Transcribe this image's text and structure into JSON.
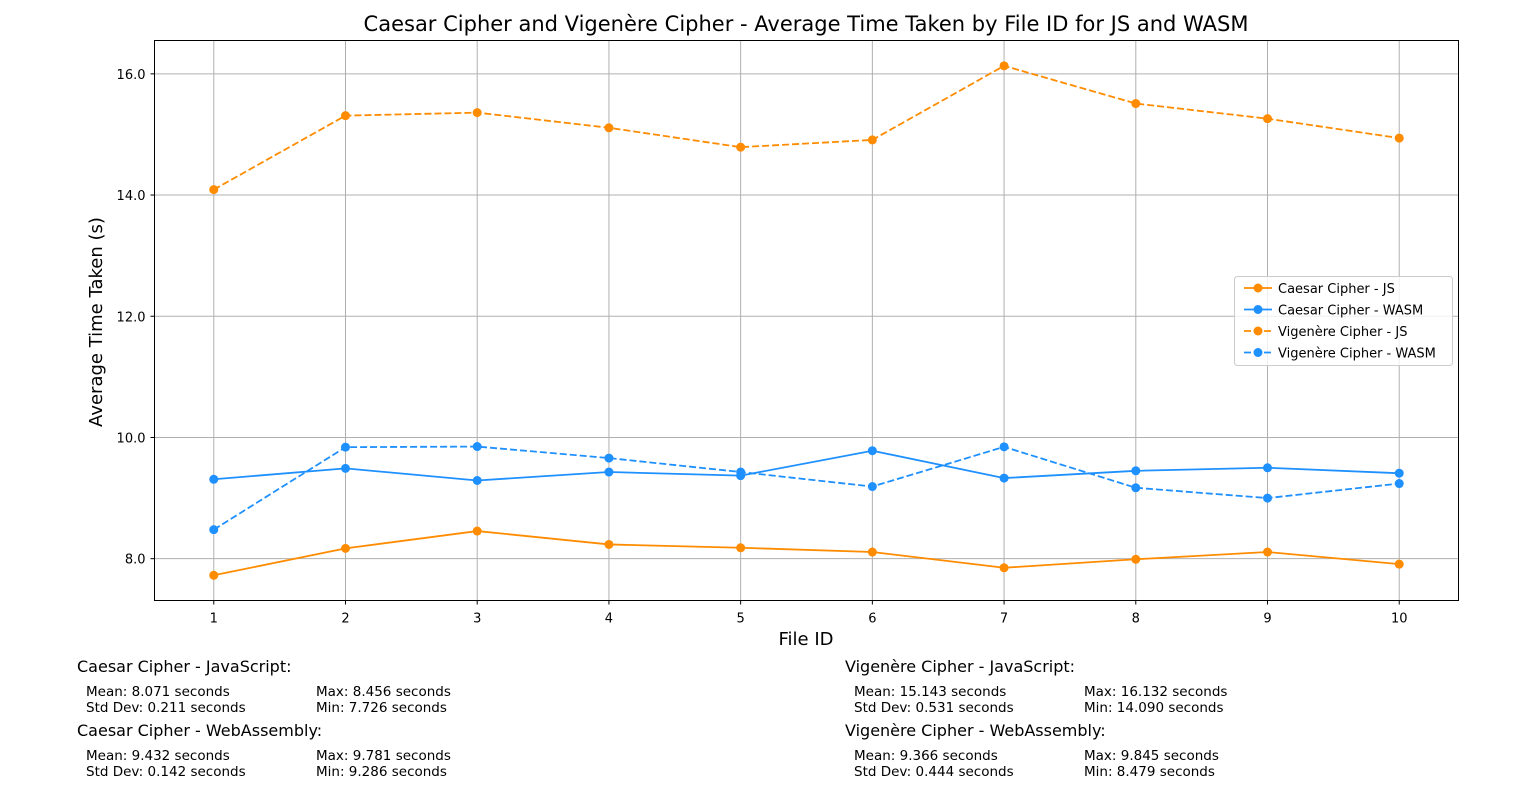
{
  "chart_data": {
    "type": "line",
    "title": "Caesar Cipher and Vigenère Cipher - Average Time Taken by File ID for JS and WASM",
    "xlabel": "File ID",
    "ylabel": "Average Time Taken (s)",
    "x": [
      1,
      2,
      3,
      4,
      5,
      6,
      7,
      8,
      9,
      10
    ],
    "x_ticks": [
      "1",
      "2",
      "3",
      "4",
      "5",
      "6",
      "7",
      "8",
      "9",
      "10"
    ],
    "y_ticks": [
      "8.0",
      "10.0",
      "12.0",
      "14.0",
      "16.0"
    ],
    "xlim": [
      0.55,
      10.45
    ],
    "ylim": [
      7.31,
      16.55
    ],
    "grid": true,
    "legend_position": "center-right",
    "series": [
      {
        "name": "Caesar Cipher - JS",
        "color": "#ff8c00",
        "linestyle": "solid",
        "values": [
          7.726,
          8.17,
          8.456,
          8.235,
          8.18,
          8.11,
          7.85,
          7.99,
          8.11,
          7.91
        ]
      },
      {
        "name": "Caesar Cipher - WASM",
        "color": "#1e90ff",
        "linestyle": "solid",
        "values": [
          9.31,
          9.49,
          9.29,
          9.43,
          9.37,
          9.781,
          9.33,
          9.45,
          9.5,
          9.41
        ]
      },
      {
        "name": "Vigenère Cipher - JS",
        "color": "#ff8c00",
        "linestyle": "dashed",
        "values": [
          14.09,
          15.31,
          15.36,
          15.11,
          14.79,
          14.91,
          16.132,
          15.51,
          15.26,
          14.94
        ]
      },
      {
        "name": "Vigenère Cipher - WASM",
        "color": "#1e90ff",
        "linestyle": "dashed",
        "values": [
          8.479,
          9.84,
          9.85,
          9.66,
          9.43,
          9.19,
          9.845,
          9.17,
          9.0,
          9.24
        ]
      }
    ]
  },
  "stats": {
    "caesar_js": {
      "heading": "Caesar Cipher - JavaScript:",
      "mean": "Mean: 8.071 seconds",
      "std": "Std Dev: 0.211 seconds",
      "max": "Max: 8.456 seconds",
      "min": "Min: 7.726 seconds"
    },
    "caesar_wasm": {
      "heading": "Caesar Cipher - WebAssembly:",
      "mean": "Mean: 9.432 seconds",
      "std": "Std Dev: 0.142 seconds",
      "max": "Max: 9.781 seconds",
      "min": "Min: 9.286 seconds"
    },
    "vigenere_js": {
      "heading": "Vigenère Cipher - JavaScript:",
      "mean": "Mean: 15.143 seconds",
      "std": "Std Dev: 0.531 seconds",
      "max": "Max: 16.132 seconds",
      "min": "Min: 14.090 seconds"
    },
    "vigenere_wasm": {
      "heading": "Vigenère Cipher - WebAssembly:",
      "mean": "Mean: 9.366 seconds",
      "std": "Std Dev: 0.444 seconds",
      "max": "Max: 9.845 seconds",
      "min": "Min: 8.479 seconds"
    }
  }
}
